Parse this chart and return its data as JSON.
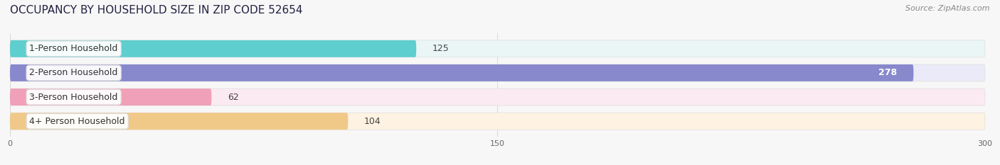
{
  "title": "OCCUPANCY BY HOUSEHOLD SIZE IN ZIP CODE 52654",
  "source": "Source: ZipAtlas.com",
  "categories": [
    "1-Person Household",
    "2-Person Household",
    "3-Person Household",
    "4+ Person Household"
  ],
  "values": [
    125,
    278,
    62,
    104
  ],
  "bar_colors": [
    "#5ecece",
    "#8888cc",
    "#f0a0b8",
    "#f0c888"
  ],
  "bar_bg_colors": [
    "#eaf6f6",
    "#eaeaf8",
    "#fceaf2",
    "#fef3e2"
  ],
  "label_text_colors": [
    "#444444",
    "#444444",
    "#444444",
    "#444444"
  ],
  "value_label_colors": [
    "#444444",
    "#ffffff",
    "#444444",
    "#444444"
  ],
  "xlim": [
    0,
    300
  ],
  "xticks": [
    0,
    150,
    300
  ],
  "figsize": [
    14.06,
    2.33
  ],
  "dpi": 100,
  "title_fontsize": 11,
  "bar_label_fontsize": 9,
  "category_fontsize": 9,
  "source_fontsize": 8,
  "background_color": "#f7f7f7",
  "bar_height": 0.7,
  "bar_gap": 0.05
}
